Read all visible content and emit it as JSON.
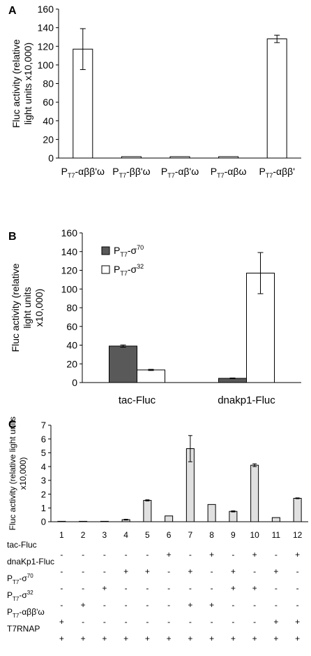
{
  "chart_data": [
    {
      "panel": "A",
      "type": "bar",
      "ylabel": "Fluc activity (relative light units x10,000)",
      "ylim": [
        0,
        160
      ],
      "yticks": [
        0,
        20,
        40,
        60,
        80,
        100,
        120,
        140,
        160
      ],
      "categories": [
        {
          "base": "P",
          "sub": "T7",
          "rest": "-αββ'ω"
        },
        {
          "base": "P",
          "sub": "T7",
          "rest": "-ββ'ω"
        },
        {
          "base": "P",
          "sub": "T7",
          "rest": "-αβ'ω"
        },
        {
          "base": "P",
          "sub": "T7",
          "rest": "-αβω"
        },
        {
          "base": "P",
          "sub": "T7",
          "rest": "-αββ'"
        }
      ],
      "values": [
        117,
        1.5,
        1.5,
        1.5,
        128
      ],
      "errors": [
        22,
        0,
        0,
        0,
        4
      ],
      "bar_color": "#ffffff"
    },
    {
      "panel": "B",
      "type": "bar",
      "ylabel": "Fluc activity (relative light units x10,000)",
      "ylim": [
        0,
        160
      ],
      "yticks": [
        0,
        20,
        40,
        60,
        80,
        100,
        120,
        140,
        160
      ],
      "categories": [
        "tac-Fluc",
        "dnakp1-Fluc"
      ],
      "series": [
        {
          "name": {
            "base": "P",
            "sub": "T7",
            "rest": "-σ",
            "sup": "70"
          },
          "color": "#595959",
          "values": [
            39,
            4.5
          ],
          "errors": [
            1.2,
            0.4
          ]
        },
        {
          "name": {
            "base": "P",
            "sub": "T7",
            "rest": "-σ",
            "sup": "32"
          },
          "color": "#ffffff",
          "values": [
            13.5,
            117
          ],
          "errors": [
            0.6,
            22
          ]
        }
      ],
      "legend": "top-left"
    },
    {
      "panel": "C",
      "type": "bar",
      "ylabel": "Fluc activity (relative light units x10,000)",
      "ylim": [
        0,
        7
      ],
      "yticks": [
        0,
        1,
        2,
        3,
        4,
        5,
        6,
        7
      ],
      "categories": [
        "1",
        "2",
        "3",
        "4",
        "5",
        "6",
        "7",
        "8",
        "9",
        "10",
        "11",
        "12"
      ],
      "values": [
        0.03,
        0.03,
        0.03,
        0.15,
        1.55,
        0.42,
        5.3,
        1.25,
        0.75,
        4.1,
        0.3,
        1.7
      ],
      "errors": [
        0,
        0,
        0,
        0.03,
        0.04,
        0,
        0.95,
        0,
        0.04,
        0.1,
        0,
        0.03
      ],
      "bar_color": "#e0e0e0",
      "table": [
        {
          "label": {
            "base": "tac-Fluc"
          },
          "marks": [
            "-",
            "-",
            "-",
            "-",
            "-",
            "+",
            "-",
            "+",
            "-",
            "+",
            "-",
            "+"
          ]
        },
        {
          "label": {
            "base": "dnaKp1-Fluc"
          },
          "marks": [
            "-",
            "-",
            "-",
            "+",
            "+",
            "-",
            "+",
            "-",
            "+",
            "-",
            "+",
            "-"
          ]
        },
        {
          "label": {
            "base": "P",
            "sub": "T7",
            "rest": "-σ",
            "sup": "70"
          },
          "marks": [
            "-",
            "-",
            "+",
            "-",
            "-",
            "-",
            "-",
            "-",
            "+",
            "+",
            "-",
            "-"
          ]
        },
        {
          "label": {
            "base": "P",
            "sub": "T7",
            "rest": "-σ",
            "sup": "32"
          },
          "marks": [
            "-",
            "+",
            "-",
            "-",
            "-",
            "-",
            "+",
            "+",
            "-",
            "-",
            "-",
            "-"
          ]
        },
        {
          "label": {
            "base": "P",
            "sub": "T7",
            "rest": "-αββ'ω"
          },
          "marks": [
            "+",
            "-",
            "-",
            "-",
            "-",
            "-",
            "-",
            "-",
            "-",
            "-",
            "+",
            "+"
          ]
        },
        {
          "label": {
            "base": "T7RNAP"
          },
          "marks": [
            "+",
            "+",
            "+",
            "+",
            "+",
            "+",
            "+",
            "+",
            "+",
            "+",
            "+",
            "+"
          ]
        }
      ]
    }
  ]
}
